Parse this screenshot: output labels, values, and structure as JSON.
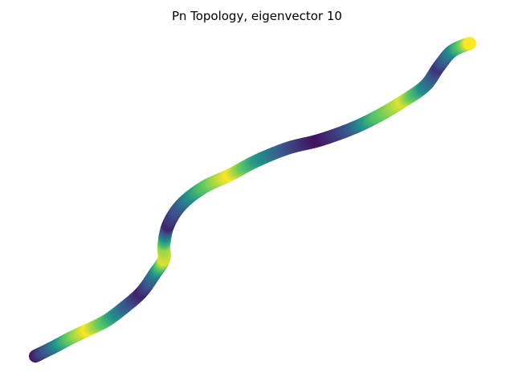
{
  "chart_data": {
    "type": "scatter",
    "title": "Pn Topology, eigenvector 10",
    "xlabel": "",
    "ylabel": "",
    "axes_visible": false,
    "grid": false,
    "colormap": "viridis",
    "color_scale": [
      {
        "t": 0.0,
        "color": "#440154"
      },
      {
        "t": 0.25,
        "color": "#3b528b"
      },
      {
        "t": 0.5,
        "color": "#21918c"
      },
      {
        "t": 0.75,
        "color": "#5ec962"
      },
      {
        "t": 1.0,
        "color": "#fde725"
      }
    ],
    "path": [
      {
        "x": 0.0,
        "y": 0.0,
        "v": 0.05
      },
      {
        "x": 0.04,
        "y": 0.028,
        "v": 0.35
      },
      {
        "x": 0.08,
        "y": 0.058,
        "v": 0.75
      },
      {
        "x": 0.12,
        "y": 0.085,
        "v": 1.0
      },
      {
        "x": 0.16,
        "y": 0.113,
        "v": 0.7
      },
      {
        "x": 0.2,
        "y": 0.155,
        "v": 0.35
      },
      {
        "x": 0.24,
        "y": 0.205,
        "v": 0.1
      },
      {
        "x": 0.27,
        "y": 0.265,
        "v": 0.4
      },
      {
        "x": 0.29,
        "y": 0.31,
        "v": 0.95
      },
      {
        "x": 0.29,
        "y": 0.355,
        "v": 0.85
      },
      {
        "x": 0.3,
        "y": 0.42,
        "v": 0.1
      },
      {
        "x": 0.33,
        "y": 0.485,
        "v": 0.3
      },
      {
        "x": 0.38,
        "y": 0.54,
        "v": 0.7
      },
      {
        "x": 0.44,
        "y": 0.58,
        "v": 1.0
      },
      {
        "x": 0.5,
        "y": 0.625,
        "v": 0.55
      },
      {
        "x": 0.57,
        "y": 0.665,
        "v": 0.25
      },
      {
        "x": 0.64,
        "y": 0.69,
        "v": 0.05
      },
      {
        "x": 0.71,
        "y": 0.725,
        "v": 0.25
      },
      {
        "x": 0.77,
        "y": 0.765,
        "v": 0.7
      },
      {
        "x": 0.83,
        "y": 0.815,
        "v": 0.95
      },
      {
        "x": 0.88,
        "y": 0.865,
        "v": 0.45
      },
      {
        "x": 0.91,
        "y": 0.925,
        "v": 0.15
      },
      {
        "x": 0.94,
        "y": 0.975,
        "v": 0.45
      },
      {
        "x": 0.98,
        "y": 1.0,
        "v": 1.0
      }
    ]
  }
}
